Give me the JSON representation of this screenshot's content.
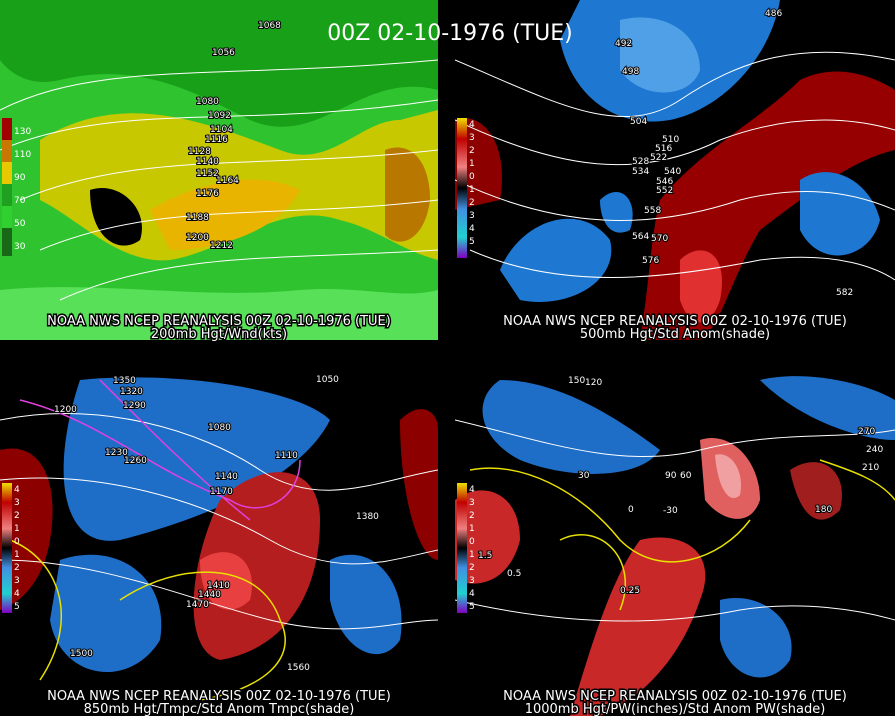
{
  "title": "00Z 02-10-1976 (TUE)",
  "panels": [
    {
      "caption1": "NOAA NWS NCEP REANALYSIS 00Z 02-10-1976 (TUE)",
      "caption2": "200mb Hgt/Wnd(kts)",
      "colorbar": [
        "130",
        "110",
        "90",
        "70",
        "50",
        "30"
      ],
      "labels": [
        "1068",
        "1056",
        "1080",
        "1092",
        "1104",
        "1116",
        "1128",
        "1140",
        "1152",
        "1164",
        "1176",
        "1188",
        "1200",
        "1212"
      ]
    },
    {
      "caption1": "NOAA NWS NCEP REANALYSIS 00Z 02-10-1976 (TUE)",
      "caption2": "500mb Hgt/Std Anom(shade)",
      "colorbar": [
        "4",
        "3",
        "2",
        "1",
        "0",
        "1",
        "2",
        "3",
        "4",
        "5"
      ],
      "labels": [
        "486",
        "492",
        "498",
        "504",
        "510",
        "516",
        "522",
        "528",
        "534",
        "540",
        "546",
        "552",
        "558",
        "564",
        "570",
        "576",
        "582"
      ]
    },
    {
      "caption1": "NOAA NWS NCEP REANALYSIS 00Z 02-10-1976 (TUE)",
      "caption2": "850mb Hgt/Tmpc/Std Anom Tmpc(shade)",
      "colorbar": [
        "4",
        "3",
        "2",
        "1",
        "0",
        "1",
        "2",
        "3",
        "4",
        "5"
      ],
      "labels": [
        "1350",
        "1320",
        "1290",
        "1260",
        "1230",
        "1200",
        "1170",
        "1140",
        "1110",
        "1050",
        "1080",
        "1380",
        "1410",
        "1440",
        "1470",
        "1500",
        "1560"
      ]
    },
    {
      "caption1": "NOAA NWS NCEP REANALYSIS 00Z 02-10-1976 (TUE)",
      "caption2": "1000mb Hgt/PW(inches)/Std Anom PW(shade)",
      "colorbar": [
        "4",
        "3",
        "2",
        "1",
        "0",
        "1",
        "2",
        "3",
        "4",
        "5"
      ],
      "labels": [
        "150",
        "120",
        "90",
        "60",
        "30",
        "0",
        "-30",
        "180",
        "210",
        "240",
        "270",
        "0.25",
        "0.5",
        "1.5"
      ]
    }
  ]
}
